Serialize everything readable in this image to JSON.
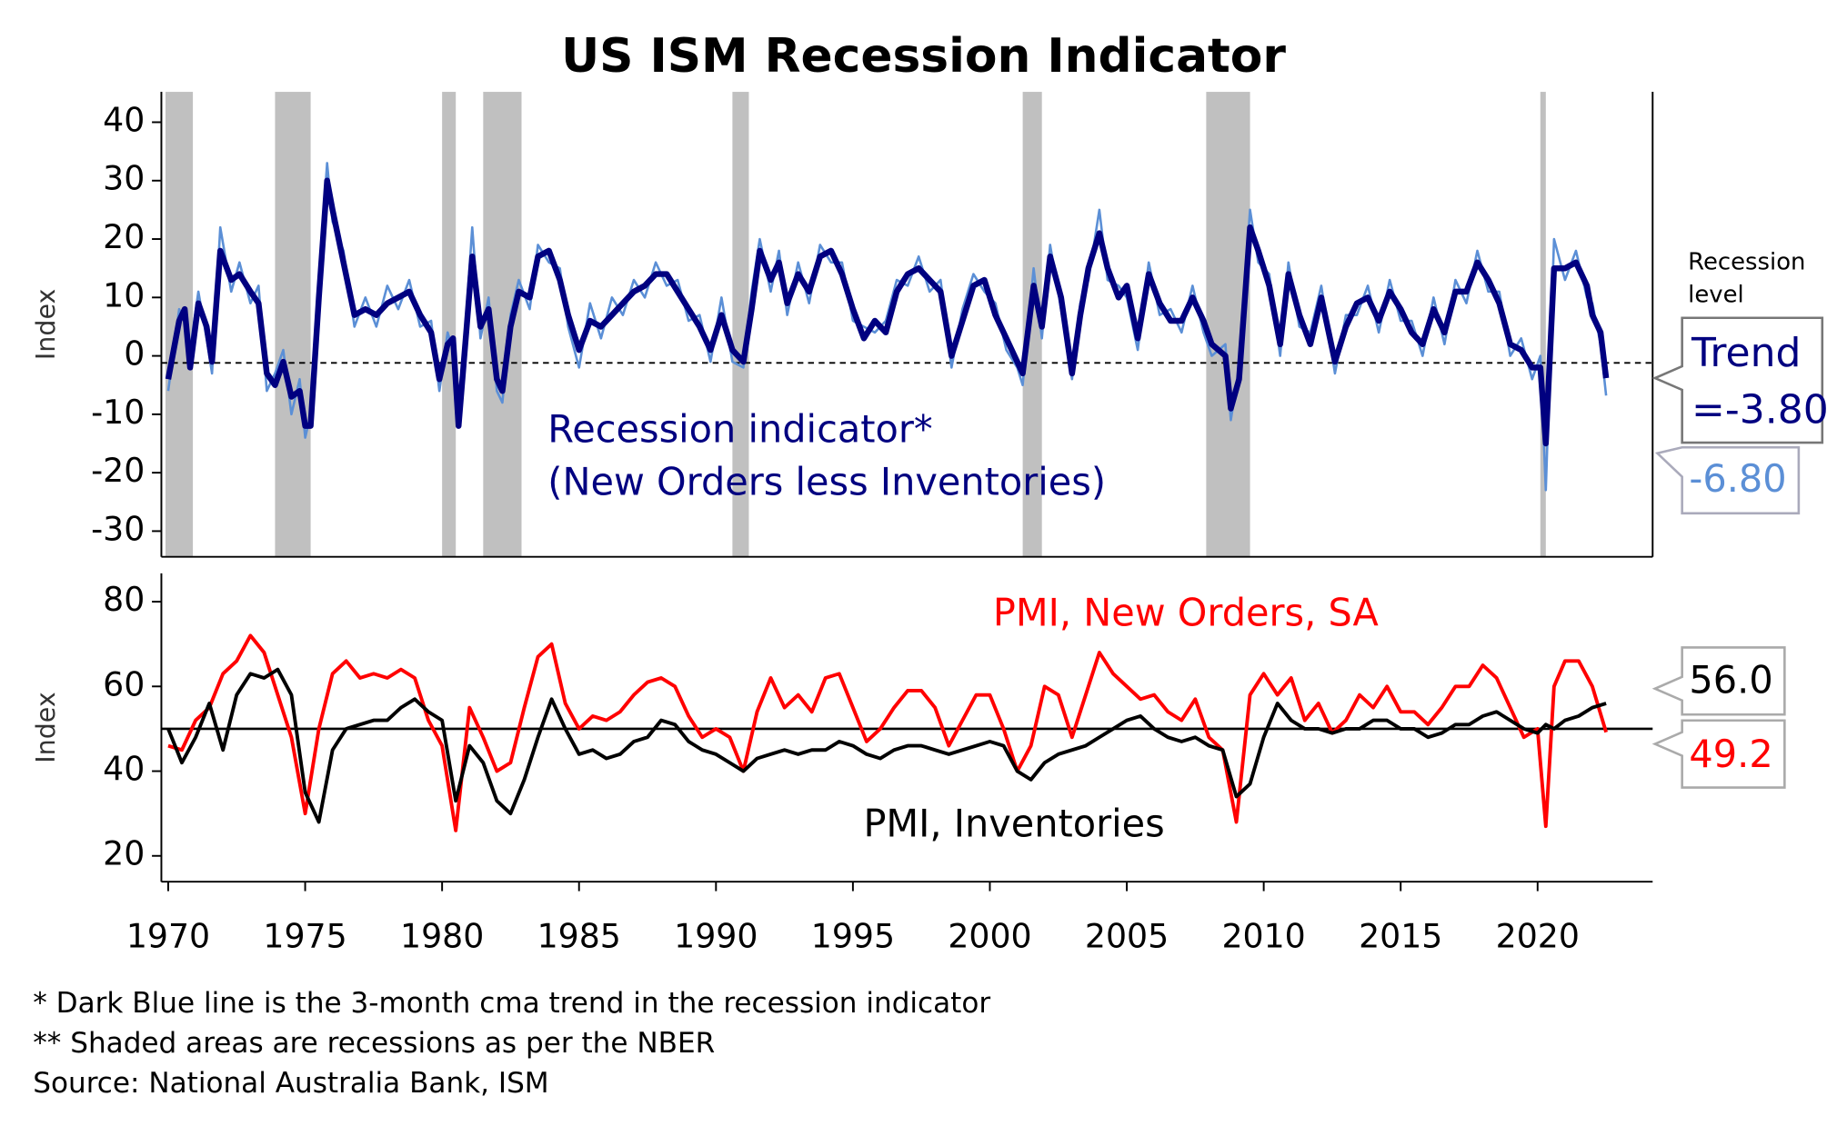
{
  "title": "US ISM Recession Indicator",
  "footnotes": [
    "*   Dark Blue line is the 3-month cma trend in the recession indicator",
    "** Shaded areas are recessions as per the NBER",
    "Source: National Australia Bank, ISM"
  ],
  "chart_data": [
    {
      "type": "line",
      "ylabel": "Index",
      "annotation": [
        "Recession indicator*",
        "(New Orders less Inventories)"
      ],
      "recession_level_label": [
        "Recession",
        "level"
      ],
      "recession_level": -1.2,
      "trend_callout": [
        "Trend",
        "=-3.80"
      ],
      "raw_callout": "-6.80",
      "xlim": [
        1969.75,
        2024.2
      ],
      "ylim": [
        -34.4,
        45.2
      ],
      "yticks": [
        -30,
        -20,
        -10,
        0,
        10,
        20,
        30,
        40
      ],
      "recessions": [
        [
          1969.9,
          1970.9
        ],
        [
          1973.9,
          1975.2
        ],
        [
          1980.0,
          1980.5
        ],
        [
          1981.5,
          1982.9
        ],
        [
          1990.6,
          1991.2
        ],
        [
          2001.2,
          2001.9
        ],
        [
          2007.9,
          2009.5
        ],
        [
          2020.1,
          2020.3
        ]
      ],
      "recession_color": "#c0c0c0",
      "x": [
        1970.0,
        1970.4,
        1970.6,
        1970.8,
        1971.1,
        1971.4,
        1971.6,
        1971.9,
        1972.3,
        1972.6,
        1973.0,
        1973.3,
        1973.6,
        1973.9,
        1974.2,
        1974.5,
        1974.8,
        1975.0,
        1975.2,
        1975.5,
        1975.8,
        1976.0,
        1976.4,
        1976.8,
        1977.2,
        1977.6,
        1978.0,
        1978.4,
        1978.8,
        1979.2,
        1979.6,
        1979.9,
        1980.2,
        1980.4,
        1980.6,
        1980.9,
        1981.1,
        1981.4,
        1981.7,
        1982.0,
        1982.2,
        1982.5,
        1982.8,
        1983.2,
        1983.5,
        1983.9,
        1984.3,
        1984.6,
        1985.0,
        1985.4,
        1985.8,
        1986.2,
        1986.6,
        1987.0,
        1987.4,
        1987.8,
        1988.2,
        1988.6,
        1989.0,
        1989.4,
        1989.8,
        1990.2,
        1990.6,
        1991.0,
        1991.3,
        1991.6,
        1992.0,
        1992.3,
        1992.6,
        1993.0,
        1993.4,
        1993.8,
        1994.2,
        1994.6,
        1995.0,
        1995.4,
        1995.8,
        1996.2,
        1996.6,
        1997.0,
        1997.4,
        1997.8,
        1998.2,
        1998.6,
        1999.0,
        1999.4,
        1999.8,
        2000.2,
        2000.6,
        2001.0,
        2001.2,
        2001.6,
        2001.9,
        2002.2,
        2002.6,
        2003.0,
        2003.3,
        2003.6,
        2004.0,
        2004.3,
        2004.7,
        2005.0,
        2005.4,
        2005.8,
        2006.2,
        2006.6,
        2007.0,
        2007.4,
        2007.8,
        2008.1,
        2008.6,
        2008.8,
        2009.1,
        2009.5,
        2009.8,
        2010.2,
        2010.6,
        2010.9,
        2011.3,
        2011.7,
        2012.1,
        2012.6,
        2013.0,
        2013.4,
        2013.8,
        2014.2,
        2014.6,
        2015.0,
        2015.4,
        2015.8,
        2016.2,
        2016.6,
        2017.0,
        2017.4,
        2017.8,
        2018.2,
        2018.6,
        2019.0,
        2019.4,
        2019.8,
        2020.1,
        2020.3,
        2020.6,
        2021.0,
        2021.4,
        2021.8,
        2022.0,
        2022.3,
        2022.5
      ],
      "series": [
        {
          "color": "#5b8fd6",
          "width": 2,
          "values": [
            -6,
            8,
            6,
            1,
            11,
            3,
            -3,
            22,
            11,
            16,
            9,
            12,
            -6,
            -3,
            1,
            -10,
            -4,
            -14,
            -10,
            13,
            33,
            23,
            18,
            5,
            10,
            5,
            12,
            8,
            13,
            5,
            6,
            -6,
            4,
            1,
            -10,
            8,
            22,
            3,
            10,
            -6,
            -8,
            7,
            13,
            8,
            19,
            16,
            15,
            5,
            -2,
            9,
            3,
            10,
            7,
            13,
            10,
            16,
            12,
            13,
            6,
            7,
            -1,
            10,
            -1,
            -2,
            11,
            20,
            11,
            18,
            7,
            16,
            9,
            19,
            16,
            16,
            6,
            5,
            4,
            6,
            13,
            12,
            17,
            11,
            13,
            -2,
            8,
            14,
            11,
            9,
            1,
            -2,
            -5,
            15,
            3,
            19,
            8,
            -4,
            9,
            13,
            25,
            13,
            12,
            10,
            1,
            16,
            7,
            8,
            4,
            12,
            4,
            0,
            2,
            -11,
            -2,
            25,
            16,
            14,
            0,
            16,
            5,
            4,
            12,
            -3,
            7,
            7,
            12,
            4,
            13,
            6,
            6,
            0,
            10,
            2,
            13,
            9,
            18,
            11,
            11,
            0,
            3,
            -4,
            0,
            -23,
            20,
            13,
            18,
            10,
            9,
            2,
            -6.8
          ]
        },
        {
          "color": "#000080",
          "width": 5,
          "values": [
            -4,
            6,
            8,
            -2,
            9,
            5,
            -1,
            18,
            13,
            14,
            11,
            9,
            -3,
            -5,
            -1,
            -7,
            -6,
            -12,
            -12,
            10,
            30,
            25,
            16,
            7,
            8,
            7,
            9,
            10,
            11,
            7,
            4,
            -4,
            2,
            3,
            -12,
            5,
            17,
            5,
            8,
            -4,
            -6,
            5,
            11,
            10,
            17,
            18,
            13,
            7,
            1,
            6,
            5,
            7,
            9,
            11,
            12,
            14,
            14,
            11,
            8,
            5,
            1,
            7,
            1,
            -1,
            8,
            18,
            13,
            16,
            9,
            14,
            11,
            17,
            18,
            14,
            8,
            3,
            6,
            4,
            11,
            14,
            15,
            13,
            11,
            0,
            6,
            12,
            13,
            7,
            3,
            -1,
            -3,
            12,
            5,
            17,
            10,
            -3,
            7,
            15,
            21,
            15,
            10,
            12,
            3,
            14,
            9,
            6,
            6,
            10,
            6,
            2,
            0,
            -9,
            -4,
            22,
            18,
            12,
            2,
            14,
            7,
            2,
            10,
            -1,
            5,
            9,
            10,
            6,
            11,
            8,
            4,
            2,
            8,
            4,
            11,
            11,
            16,
            13,
            9,
            2,
            1,
            -2,
            -2,
            -15,
            15,
            15,
            16,
            12,
            7,
            4,
            -3.8
          ]
        }
      ]
    },
    {
      "type": "line",
      "ylabel": "Index",
      "reference_line": 50,
      "callouts": [
        "56.0",
        "49.2"
      ],
      "xlim": [
        1969.75,
        2024.2
      ],
      "xticks": [
        1970,
        1975,
        1980,
        1985,
        1990,
        1995,
        2000,
        2005,
        2010,
        2015,
        2020
      ],
      "ylim": [
        13.9,
        86.7
      ],
      "yticks": [
        20,
        40,
        60,
        80
      ],
      "x": [
        1970,
        1970.5,
        1971,
        1971.5,
        1972,
        1972.5,
        1973,
        1973.5,
        1974,
        1974.5,
        1975,
        1975.5,
        1976,
        1976.5,
        1977,
        1977.5,
        1978,
        1978.5,
        1979,
        1979.5,
        1980,
        1980.5,
        1981,
        1981.5,
        1982,
        1982.5,
        1983,
        1983.5,
        1984,
        1984.5,
        1985,
        1985.5,
        1986,
        1986.5,
        1987,
        1987.5,
        1988,
        1988.5,
        1989,
        1989.5,
        1990,
        1990.5,
        1991,
        1991.5,
        1992,
        1992.5,
        1993,
        1993.5,
        1994,
        1994.5,
        1995,
        1995.5,
        1996,
        1996.5,
        1997,
        1997.5,
        1998,
        1998.5,
        1999,
        1999.5,
        2000,
        2000.5,
        2001,
        2001.5,
        2002,
        2002.5,
        2003,
        2003.5,
        2004,
        2004.5,
        2005,
        2005.5,
        2006,
        2006.5,
        2007,
        2007.5,
        2008,
        2008.5,
        2009,
        2009.5,
        2010,
        2010.5,
        2011,
        2011.5,
        2012,
        2012.5,
        2013,
        2013.5,
        2014,
        2014.5,
        2015,
        2015.5,
        2016,
        2016.5,
        2017,
        2017.5,
        2018,
        2018.5,
        2019,
        2019.5,
        2020,
        2020.3,
        2020.6,
        2021,
        2021.5,
        2022,
        2022.5
      ],
      "series": [
        {
          "name": "PMI, New Orders, SA",
          "color": "#ff0000",
          "values": [
            46,
            45,
            52,
            55,
            63,
            66,
            72,
            68,
            58,
            48,
            30,
            50,
            63,
            66,
            62,
            63,
            62,
            64,
            62,
            52,
            46,
            26,
            55,
            48,
            40,
            42,
            55,
            67,
            70,
            56,
            50,
            53,
            52,
            54,
            58,
            61,
            62,
            60,
            53,
            48,
            50,
            48,
            40,
            54,
            62,
            55,
            58,
            54,
            62,
            63,
            55,
            47,
            50,
            55,
            59,
            59,
            55,
            46,
            52,
            58,
            58,
            50,
            40,
            46,
            60,
            58,
            48,
            58,
            68,
            63,
            60,
            57,
            58,
            54,
            52,
            57,
            48,
            45,
            28,
            58,
            63,
            58,
            62,
            52,
            56,
            49,
            52,
            58,
            55,
            60,
            54,
            54,
            51,
            55,
            60,
            60,
            65,
            62,
            55,
            48,
            50,
            27,
            60,
            66,
            66,
            60,
            49.2
          ]
        },
        {
          "name": "PMI, Inventories",
          "color": "#000000",
          "values": [
            50,
            42,
            48,
            56,
            45,
            58,
            63,
            62,
            64,
            58,
            35,
            28,
            45,
            50,
            51,
            52,
            52,
            55,
            57,
            54,
            52,
            33,
            46,
            42,
            33,
            30,
            38,
            48,
            57,
            50,
            44,
            45,
            43,
            44,
            47,
            48,
            52,
            51,
            47,
            45,
            44,
            42,
            40,
            43,
            44,
            45,
            44,
            45,
            45,
            47,
            46,
            44,
            43,
            45,
            46,
            46,
            45,
            44,
            45,
            46,
            47,
            46,
            40,
            38,
            42,
            44,
            45,
            46,
            48,
            50,
            52,
            53,
            50,
            48,
            47,
            48,
            46,
            45,
            34,
            37,
            48,
            56,
            52,
            50,
            50,
            49,
            50,
            50,
            52,
            52,
            50,
            50,
            48,
            49,
            51,
            51,
            53,
            54,
            52,
            50,
            49,
            51,
            50,
            52,
            53,
            55,
            56
          ]
        }
      ]
    }
  ]
}
